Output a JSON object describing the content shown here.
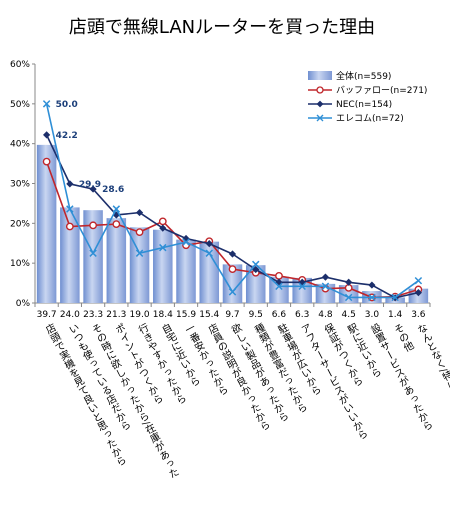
{
  "chart_data": {
    "type": "bar",
    "title": "店頭で無線LANルーターを買った理由",
    "ylim": [
      0,
      60
    ],
    "yticks": [
      "0%",
      "10%",
      "20%",
      "30%",
      "40%",
      "50%",
      "60%"
    ],
    "grid": false,
    "legend_position": "top-right",
    "categories": [
      "店頭で実機を見て良いと思ったから",
      "いつも使っている店だから",
      "その時に欲しかったから/在庫があった",
      "ポイントがつくから",
      "行きやすかったから",
      "自宅に近いから",
      "一番安かったから",
      "店員の説明が良かったから",
      "欲しい製品があったから",
      "種類が豊富だったから",
      "駐車場が広いから",
      "アフターサービスがいいから",
      "保証がつくから",
      "駅に近いから",
      "設置サービスがあったから",
      "その他",
      "なんとなく/特に理由はない"
    ],
    "series": [
      {
        "name": "全体(n=559)",
        "kind": "bar",
        "color": "#8fa9de",
        "values": [
          39.7,
          24.0,
          23.3,
          21.3,
          19.0,
          18.4,
          15.9,
          15.4,
          9.7,
          9.5,
          6.6,
          6.3,
          4.8,
          4.5,
          3.0,
          1.4,
          3.6
        ]
      },
      {
        "name": "バッファロー(n=271)",
        "kind": "line",
        "color": "#c0262b",
        "marker": "circle",
        "values": [
          35.5,
          19.2,
          19.5,
          19.8,
          17.8,
          20.5,
          14.5,
          15.5,
          8.5,
          7.6,
          6.8,
          5.8,
          3.6,
          3.8,
          1.4,
          1.6,
          3.4
        ]
      },
      {
        "name": "NEC(n=154)",
        "kind": "line",
        "color": "#1c2f6b",
        "marker": "diamond",
        "values": [
          42.2,
          29.9,
          28.6,
          22.1,
          22.7,
          18.8,
          16.2,
          14.9,
          12.3,
          8.4,
          5.2,
          5.2,
          6.5,
          5.2,
          4.5,
          1.3,
          2.6
        ]
      },
      {
        "name": "エレコム(n=72)",
        "kind": "line",
        "color": "#2f8fd6",
        "marker": "x",
        "values": [
          50.0,
          23.6,
          12.5,
          23.6,
          12.5,
          13.9,
          15.3,
          12.5,
          2.8,
          9.7,
          4.2,
          4.2,
          4.2,
          1.4,
          1.4,
          1.4,
          5.6
        ]
      }
    ],
    "data_labels": [
      {
        "series": 3,
        "index": 0,
        "text": "50.0"
      },
      {
        "series": 2,
        "index": 0,
        "text": "42.2"
      },
      {
        "series": 2,
        "index": 1,
        "text": "29.9"
      },
      {
        "series": 2,
        "index": 2,
        "text": "28.6"
      }
    ]
  }
}
